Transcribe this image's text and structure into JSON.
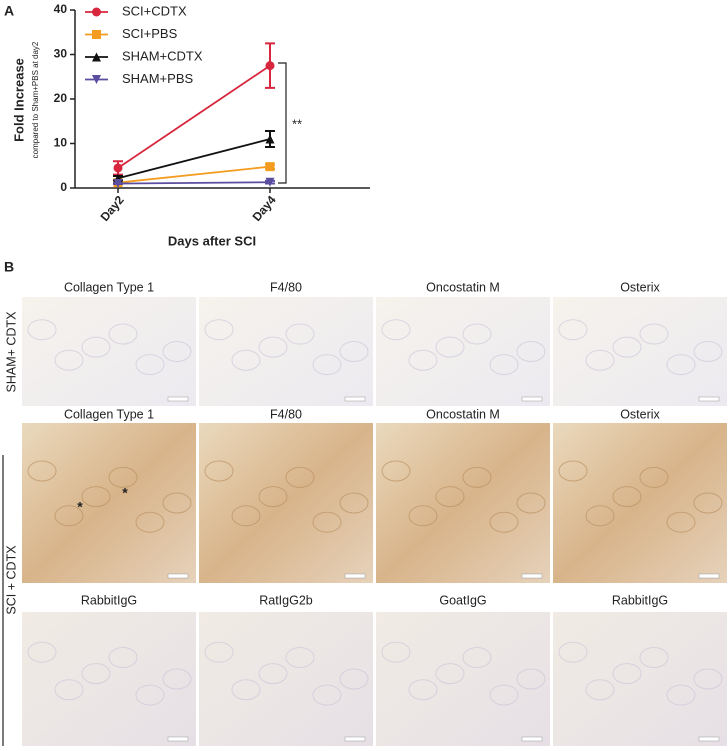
{
  "chart_data": {
    "type": "line",
    "panel_label": "A",
    "ylabel": "Fold Increase",
    "ylabel_sub": "compared to Sham+PBS at day2",
    "xlabel": "Days after SCI",
    "categories": [
      "Day2",
      "Day4"
    ],
    "ylim": [
      0,
      40
    ],
    "yticks": [
      0,
      10,
      20,
      30,
      40
    ],
    "series": [
      {
        "name": "SCI+CDTX",
        "color": "#d7263d",
        "marker": "circle",
        "values": [
          4.5,
          27.5
        ],
        "errors": [
          1.5,
          5
        ]
      },
      {
        "name": "SCI+PBS",
        "color": "#f39c1f",
        "marker": "square",
        "values": [
          1.2,
          4.8
        ],
        "errors": [
          0.3,
          0.5
        ]
      },
      {
        "name": "SHAM+CDTX",
        "color": "#111111",
        "marker": "triangle-up",
        "values": [
          2.2,
          11
        ],
        "errors": [
          0.5,
          1.8
        ]
      },
      {
        "name": "SHAM+PBS",
        "color": "#5b4ea0",
        "marker": "triangle-down",
        "values": [
          1,
          1.3
        ],
        "errors": [
          0.1,
          0.3
        ]
      }
    ],
    "annotation": "**"
  },
  "panel_b": {
    "panel_label": "B",
    "row_labels": [
      "SHAM+ CDTX",
      "SCI + CDTX"
    ],
    "rows": [
      [
        "Collagen Type 1",
        "F4/80",
        "Oncostatin M",
        "Osterix"
      ],
      [
        "Collagen Type 1",
        "F4/80",
        "Oncostatin M",
        "Osterix"
      ],
      [
        "RabbitIgG",
        "RatIgG2b",
        "GoatIgG",
        "RabbitIgG"
      ]
    ],
    "annotations": [
      "*",
      "*"
    ]
  }
}
